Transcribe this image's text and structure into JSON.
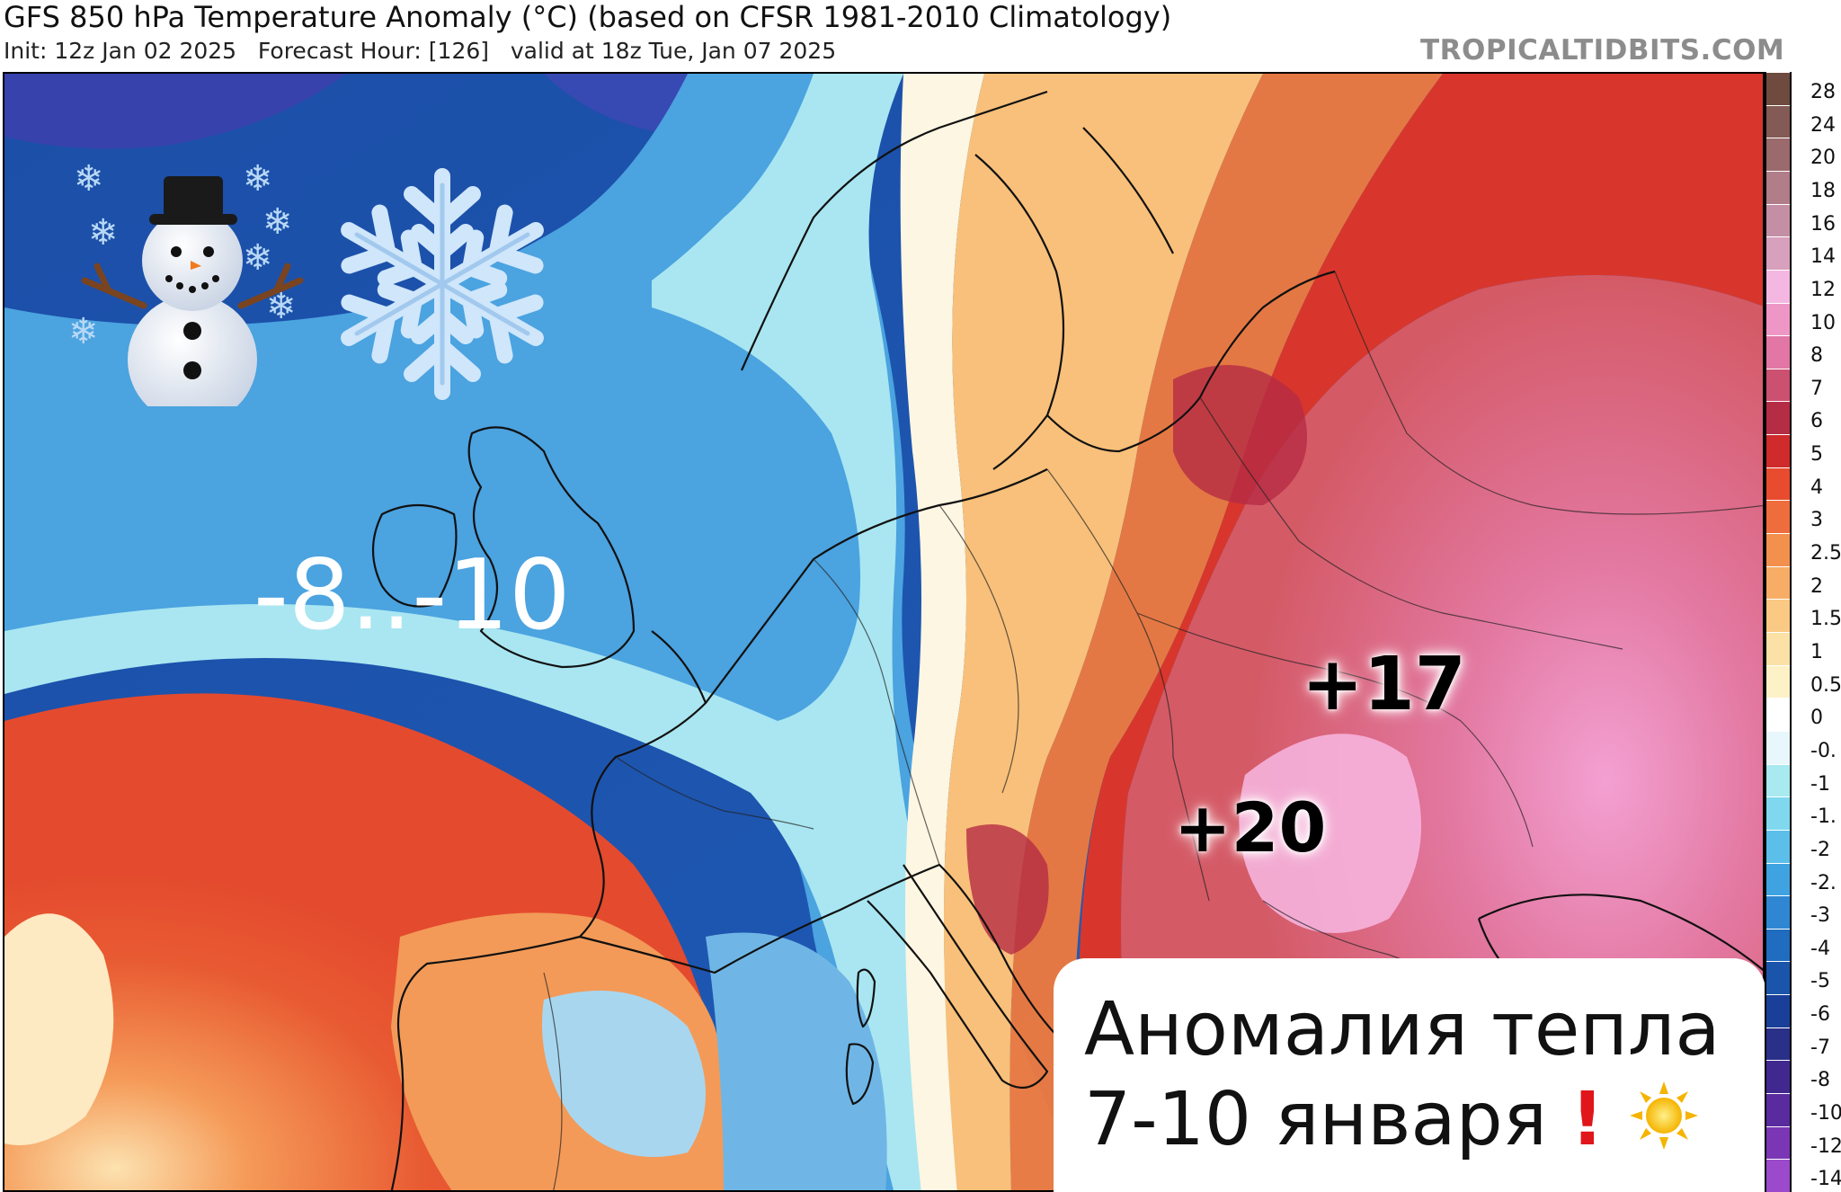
{
  "header": {
    "title": "GFS 850 hPa Temperature Anomaly (°C) (based on CFSR 1981-2010 Climatology)",
    "subtitle": "Init: 12z Jan 02 2025   Forecast Hour: [126]   valid at 18z Tue, Jan 07 2025",
    "brand": "TROPICALTIDBITS.COM"
  },
  "overlay": {
    "cold_range": "-8..-10",
    "warm_peak_1": "+17",
    "warm_peak_2": "+20",
    "caption_line1": "Аномалия тепла",
    "caption_line2": "7-10 января",
    "icons": [
      "snowman-icon",
      "snowflake-icon",
      "exclamation-icon",
      "sun-icon"
    ]
  },
  "colorbar": {
    "labels": [
      "28",
      "24",
      "20",
      "18",
      "16",
      "14",
      "12",
      "10",
      "8",
      "7",
      "6",
      "5",
      "4",
      "3",
      "2.5",
      "2",
      "1.5",
      "1",
      "0.5",
      "0",
      "-0.",
      "-1",
      "-1.",
      "-2",
      "-2.",
      "-3",
      "-4",
      "-5",
      "-6",
      "-7",
      "-8",
      "-10",
      "-12",
      "-14"
    ],
    "colors": [
      "#6e4a3f",
      "#835a55",
      "#9a6a6d",
      "#b07d89",
      "#c48fa4",
      "#d7a0bd",
      "#f3b7e2",
      "#ee97c7",
      "#e277a5",
      "#cc5070",
      "#b52c45",
      "#cf2a2c",
      "#e84b2e",
      "#ef6d3d",
      "#f3904e",
      "#f7ad66",
      "#fac983",
      "#fbe1a5",
      "#fdf1c7",
      "#ffffff",
      "#e8f7fb",
      "#a8eaf0",
      "#7fd8ee",
      "#5cbfe9",
      "#3fa3e1",
      "#2f87d3",
      "#1f6cc0",
      "#1a55ab",
      "#193f98",
      "#2a2f88",
      "#40288f",
      "#5a2a9f",
      "#7a36b5",
      "#9b4acb"
    ]
  }
}
